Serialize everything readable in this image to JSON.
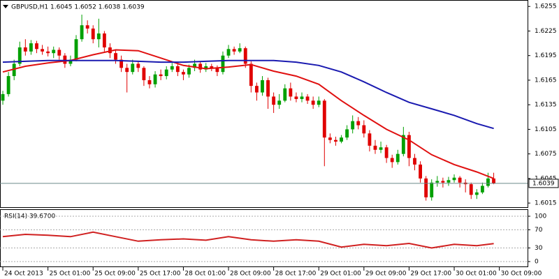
{
  "chart_data": [
    {
      "type": "candlestick",
      "title": "GBPUSD,H1  1.6045 1.6052 1.6038 1.6039",
      "open": [
        1.614,
        1.6148,
        1.617,
        1.6185,
        1.6205,
        1.62,
        1.621,
        1.6203,
        1.62,
        1.6198,
        1.6202,
        1.6195,
        1.6185,
        1.619,
        1.6215,
        1.6232,
        1.6228,
        1.6215,
        1.6222,
        1.6205,
        1.6198,
        1.619,
        1.618,
        1.6175,
        1.6185,
        1.618,
        1.6165,
        1.616,
        1.6172,
        1.617,
        1.6178,
        1.6182,
        1.6175,
        1.6172,
        1.618,
        1.6185,
        1.6178,
        1.6182,
        1.618,
        1.6175,
        1.6195,
        1.6203,
        1.62,
        1.6204,
        1.6185,
        1.6158,
        1.615,
        1.6165,
        1.6145,
        1.6135,
        1.614,
        1.6155,
        1.6145,
        1.6142,
        1.6145,
        1.614,
        1.6135,
        1.614,
        1.6095,
        1.6092,
        1.609,
        1.6095,
        1.6105,
        1.6115,
        1.611,
        1.61,
        1.6085,
        1.608,
        1.6083,
        1.607,
        1.6065,
        1.6075,
        1.6098,
        1.607,
        1.6062,
        1.6045,
        1.6022,
        1.604,
        1.6042,
        1.604,
        1.6043,
        1.6046,
        1.604,
        1.6038,
        1.6025,
        1.6028,
        1.6036,
        1.6045
      ],
      "high": [
        1.6152,
        1.6175,
        1.619,
        1.6212,
        1.6215,
        1.6214,
        1.6213,
        1.6208,
        1.6206,
        1.6206,
        1.6205,
        1.6198,
        1.6195,
        1.622,
        1.6245,
        1.6238,
        1.6232,
        1.624,
        1.6225,
        1.621,
        1.6202,
        1.6195,
        1.6185,
        1.619,
        1.6188,
        1.6182,
        1.617,
        1.6176,
        1.6178,
        1.6182,
        1.6186,
        1.6185,
        1.6178,
        1.6184,
        1.619,
        1.6188,
        1.6186,
        1.6185,
        1.6183,
        1.62,
        1.6208,
        1.6206,
        1.621,
        1.6206,
        1.6188,
        1.6162,
        1.617,
        1.6168,
        1.615,
        1.6148,
        1.616,
        1.6162,
        1.615,
        1.615,
        1.6148,
        1.6145,
        1.6145,
        1.6142,
        1.61,
        1.6096,
        1.6098,
        1.611,
        1.6122,
        1.612,
        1.6116,
        1.6104,
        1.6092,
        1.609,
        1.6086,
        1.6074,
        1.608,
        1.6108,
        1.6102,
        1.6075,
        1.6066,
        1.6048,
        1.6044,
        1.6048,
        1.6046,
        1.6047,
        1.605,
        1.6048,
        1.6044,
        1.604,
        1.6032,
        1.604,
        1.6052,
        1.6052
      ],
      "low": [
        1.6135,
        1.6145,
        1.6165,
        1.6182,
        1.6195,
        1.6196,
        1.6198,
        1.6196,
        1.6194,
        1.6192,
        1.619,
        1.618,
        1.6182,
        1.6188,
        1.6212,
        1.6222,
        1.621,
        1.6205,
        1.62,
        1.6192,
        1.6185,
        1.6175,
        1.615,
        1.6172,
        1.6175,
        1.6158,
        1.6155,
        1.6156,
        1.6165,
        1.6166,
        1.6175,
        1.617,
        1.6165,
        1.6168,
        1.6176,
        1.6174,
        1.6175,
        1.6176,
        1.617,
        1.6172,
        1.6192,
        1.6196,
        1.6198,
        1.618,
        1.615,
        1.614,
        1.6146,
        1.613,
        1.6125,
        1.613,
        1.6138,
        1.614,
        1.6138,
        1.6138,
        1.6136,
        1.613,
        1.6132,
        1.606,
        1.6088,
        1.6085,
        1.6088,
        1.6092,
        1.61,
        1.6105,
        1.6095,
        1.6078,
        1.6075,
        1.6076,
        1.6064,
        1.6058,
        1.6062,
        1.6072,
        1.606,
        1.6055,
        1.604,
        1.6018,
        1.6018,
        1.6035,
        1.6034,
        1.6036,
        1.604,
        1.6034,
        1.6028,
        1.602,
        1.602,
        1.6026,
        1.6034,
        1.6038
      ],
      "close": [
        1.6148,
        1.617,
        1.6185,
        1.6205,
        1.62,
        1.621,
        1.6203,
        1.62,
        1.6198,
        1.6202,
        1.6195,
        1.6185,
        1.619,
        1.6215,
        1.6232,
        1.6228,
        1.6215,
        1.6222,
        1.6205,
        1.6198,
        1.619,
        1.618,
        1.6175,
        1.6185,
        1.618,
        1.6165,
        1.616,
        1.6172,
        1.617,
        1.6178,
        1.6182,
        1.6175,
        1.6172,
        1.618,
        1.6185,
        1.6178,
        1.6182,
        1.618,
        1.6175,
        1.6195,
        1.6203,
        1.62,
        1.6204,
        1.6185,
        1.6158,
        1.615,
        1.6165,
        1.6145,
        1.6135,
        1.614,
        1.6155,
        1.6145,
        1.6142,
        1.6145,
        1.614,
        1.6135,
        1.614,
        1.6095,
        1.6092,
        1.609,
        1.6095,
        1.6105,
        1.6115,
        1.611,
        1.61,
        1.6085,
        1.608,
        1.6083,
        1.607,
        1.6065,
        1.6075,
        1.6098,
        1.607,
        1.6062,
        1.6045,
        1.6022,
        1.604,
        1.6042,
        1.604,
        1.6043,
        1.6046,
        1.604,
        1.6038,
        1.6025,
        1.6028,
        1.6036,
        1.6045,
        1.6039
      ],
      "up_color": "#00a000",
      "down_color": "#e00000",
      "series": [
        {
          "color": "#e01010",
          "x": [
            0,
            4,
            8,
            12,
            16,
            20,
            24,
            28,
            32,
            36,
            40,
            44,
            48,
            52,
            56,
            60,
            64,
            68,
            72,
            76,
            80,
            84,
            87
          ],
          "values": [
            1.6175,
            1.6182,
            1.6186,
            1.6189,
            1.6196,
            1.6202,
            1.6201,
            1.6192,
            1.6183,
            1.6179,
            1.6181,
            1.6184,
            1.6176,
            1.617,
            1.616,
            1.614,
            1.6122,
            1.6105,
            1.6092,
            1.6074,
            1.6062,
            1.6053,
            1.6045
          ]
        },
        {
          "color": "#1a1ab0",
          "x": [
            0,
            4,
            8,
            12,
            16,
            20,
            24,
            28,
            32,
            36,
            40,
            44,
            48,
            52,
            56,
            60,
            64,
            68,
            72,
            76,
            80,
            84,
            87
          ],
          "values": [
            1.6187,
            1.6188,
            1.6189,
            1.6189,
            1.6189,
            1.6189,
            1.6188,
            1.6187,
            1.6187,
            1.6188,
            1.6189,
            1.6189,
            1.6189,
            1.6187,
            1.6183,
            1.6175,
            1.6163,
            1.615,
            1.6138,
            1.613,
            1.6122,
            1.6112,
            1.6106
          ]
        }
      ],
      "xlim": [
        -0.5,
        93
      ],
      "ylim": [
        1.601,
        1.6262
      ],
      "yticks": [
        1.6255,
        1.6225,
        1.6195,
        1.6165,
        1.6135,
        1.6105,
        1.6075,
        1.6045,
        1.6015
      ],
      "xticks": [
        {
          "value": 0,
          "label": "24 Oct 2013"
        },
        {
          "value": 8,
          "label": "25 Oct 01:00"
        },
        {
          "value": 16,
          "label": "25 Oct 09:00"
        },
        {
          "value": 24,
          "label": "25 Oct 17:00"
        },
        {
          "value": 32,
          "label": "28 Oct 01:00"
        },
        {
          "value": 40,
          "label": "28 Oct 09:00"
        },
        {
          "value": 48,
          "label": "28 Oct 17:00"
        },
        {
          "value": 56,
          "label": "29 Oct 01:00"
        },
        {
          "value": 64,
          "label": "29 Oct 09:00"
        },
        {
          "value": 72,
          "label": "29 Oct 17:00"
        },
        {
          "value": 80,
          "label": "30 Oct 01:00"
        },
        {
          "value": 88,
          "label": "30 Oct 09:00"
        }
      ]
    },
    {
      "type": "line",
      "title": "RSI(14) 39.6700",
      "x": [
        0,
        4,
        8,
        12,
        16,
        20,
        24,
        28,
        32,
        36,
        40,
        44,
        48,
        52,
        56,
        60,
        64,
        68,
        72,
        76,
        80,
        84,
        87
      ],
      "values": [
        55,
        60,
        58,
        55,
        65,
        55,
        45,
        48,
        50,
        47,
        55,
        48,
        45,
        48,
        45,
        32,
        38,
        35,
        40,
        30,
        38,
        35,
        39.67
      ],
      "color": "#d02020",
      "xlim": [
        -0.5,
        93
      ],
      "ylim": [
        0,
        100
      ],
      "yticks": [
        100,
        70,
        30,
        0
      ]
    }
  ]
}
